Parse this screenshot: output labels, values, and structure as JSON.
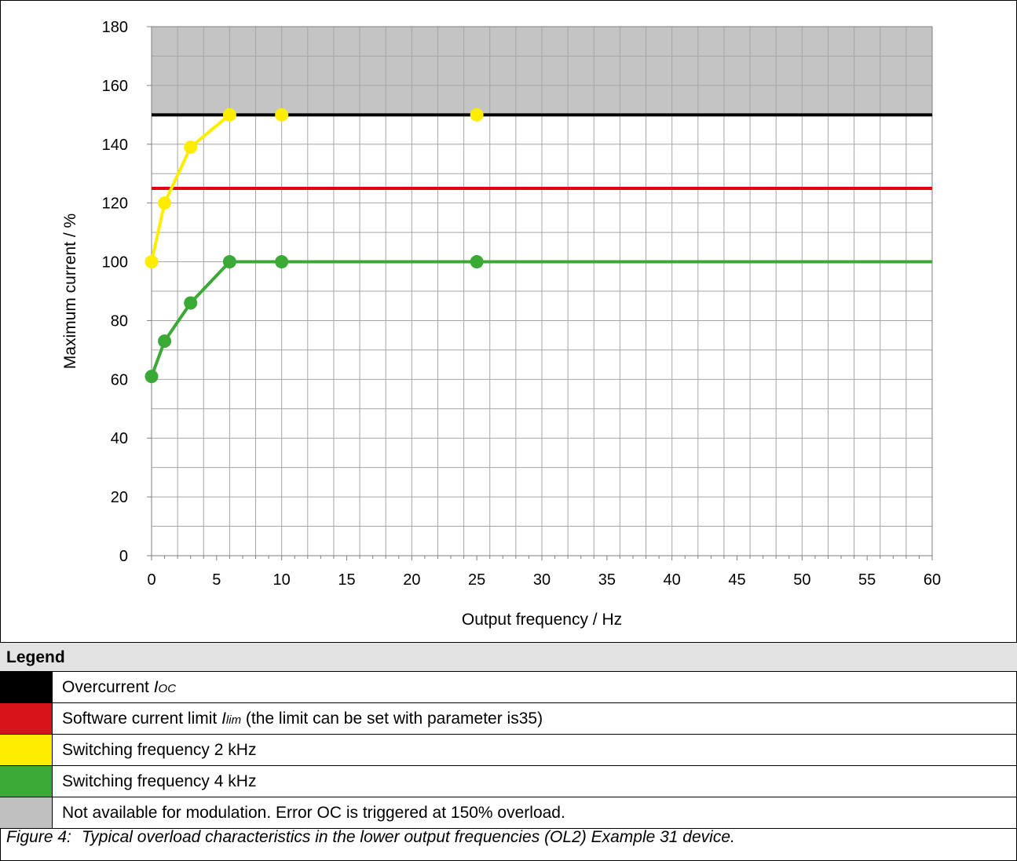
{
  "chart_data": {
    "type": "line",
    "xlabel": "Output frequency / Hz",
    "ylabel": "Maximum current / %",
    "xlim": [
      0,
      60
    ],
    "ylim": [
      0,
      180
    ],
    "x_ticks": [
      0,
      5,
      10,
      15,
      20,
      25,
      30,
      35,
      40,
      45,
      50,
      55,
      60
    ],
    "y_ticks": [
      0,
      20,
      40,
      60,
      80,
      100,
      120,
      140,
      160,
      180
    ],
    "grid": true,
    "shaded_region": {
      "y_from": 150,
      "y_to": 180,
      "color": "#c4c4c4"
    },
    "series": [
      {
        "key": "overcurrent",
        "color": "#000000",
        "markers": false,
        "x": [
          0,
          60
        ],
        "y": [
          150,
          150
        ]
      },
      {
        "key": "software_limit",
        "color": "#e3000f",
        "markers": false,
        "x": [
          0,
          60
        ],
        "y": [
          125,
          125
        ]
      },
      {
        "key": "sw_2khz",
        "color": "#ffed00",
        "markers": true,
        "line_until_index": 3,
        "x": [
          0,
          1,
          3,
          6,
          10,
          25
        ],
        "y": [
          100,
          120,
          139,
          150,
          150,
          150
        ]
      },
      {
        "key": "sw_4khz",
        "color": "#3aa935",
        "markers": true,
        "extend_to": 60,
        "x": [
          0,
          1,
          3,
          6,
          10,
          25
        ],
        "y": [
          61,
          73,
          86,
          100,
          100,
          100
        ]
      }
    ]
  },
  "legend": {
    "title": "Legend",
    "items": [
      {
        "color": "#000000",
        "text": "Overcurrent ",
        "sym": "I",
        "sub": "OC",
        "after": ""
      },
      {
        "color": "#d7141a",
        "text": "Software current limit ",
        "sym": "I",
        "sub": "lim",
        "after": " (the limit can be set with parameter is35)"
      },
      {
        "color": "#ffed00",
        "text": "Switching frequency 2 kHz",
        "sym": "",
        "sub": "",
        "after": ""
      },
      {
        "color": "#3aa935",
        "text": "Switching frequency 4 kHz",
        "sym": "",
        "sub": "",
        "after": ""
      },
      {
        "color": "#c0c0c0",
        "text": "Not available for modulation. Error OC is triggered at 150% overload.",
        "sym": "",
        "sub": "",
        "after": ""
      }
    ]
  },
  "caption": {
    "number": "Figure 4:",
    "text": "Typical overload characteristics in the lower output frequencies (OL2) Example 31 device."
  }
}
